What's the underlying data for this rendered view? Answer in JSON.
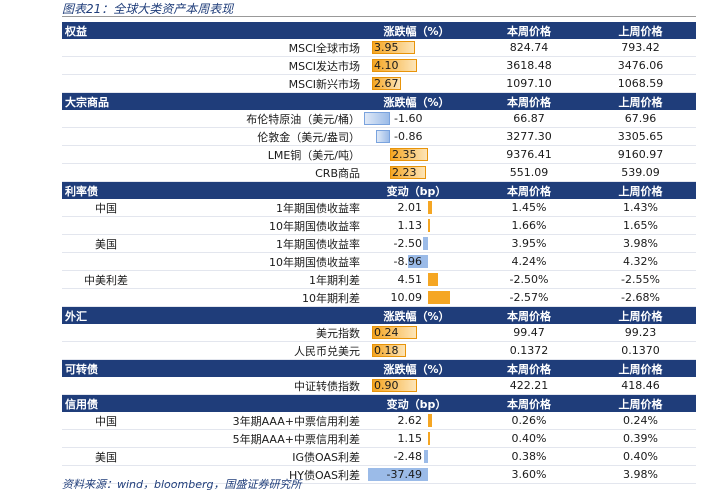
{
  "title": "图表21：全球大类资产本周表现",
  "source": "资料来源：wind，bloomberg，国盛证券研究所",
  "sections": [
    {
      "name": "权益",
      "value_header": "涨跌幅（%）",
      "cur_header": "本周价格",
      "prev_header": "上周价格",
      "kind": "pct",
      "rows": [
        {
          "sub": "",
          "label": "MSCI全球市场",
          "value": 3.95,
          "value_text": "3.95",
          "cur": "824.74",
          "prev": "793.42"
        },
        {
          "sub": "",
          "label": "MSCI发达市场",
          "value": 4.1,
          "value_text": "4.10",
          "cur": "3618.48",
          "prev": "3476.06"
        },
        {
          "sub": "",
          "label": "MSCI新兴市场",
          "value": 2.67,
          "value_text": "2.67",
          "cur": "1097.10",
          "prev": "1068.59"
        }
      ]
    },
    {
      "name": "大宗商品",
      "value_header": "涨跌幅（%）",
      "cur_header": "本周价格",
      "prev_header": "上周价格",
      "kind": "pct",
      "rows": [
        {
          "sub": "",
          "label": "布伦特原油（美元/桶）",
          "value": -1.6,
          "value_text": "-1.60",
          "cur": "66.87",
          "prev": "67.96"
        },
        {
          "sub": "",
          "label": "伦敦金（美元/盎司）",
          "value": -0.86,
          "value_text": "-0.86",
          "cur": "3277.30",
          "prev": "3305.65"
        },
        {
          "sub": "",
          "label": "LME铜（美元/吨）",
          "value": 2.35,
          "value_text": "2.35",
          "cur": "9376.41",
          "prev": "9160.97"
        },
        {
          "sub": "",
          "label": "CRB商品",
          "value": 2.23,
          "value_text": "2.23",
          "cur": "551.09",
          "prev": "539.09"
        }
      ]
    },
    {
      "name": "利率债",
      "value_header": "变动（bp）",
      "cur_header": "本周价格",
      "prev_header": "上周价格",
      "kind": "bp",
      "rows": [
        {
          "sub": "中国",
          "label": "1年期国债收益率",
          "value": 2.01,
          "value_text": "2.01",
          "cur": "1.45%",
          "prev": "1.43%"
        },
        {
          "sub": "",
          "label": "10年期国债收益率",
          "value": 1.13,
          "value_text": "1.13",
          "cur": "1.66%",
          "prev": "1.65%"
        },
        {
          "sub": "美国",
          "label": "1年期国债收益率",
          "value": -2.5,
          "value_text": "-2.50",
          "cur": "3.95%",
          "prev": "3.98%"
        },
        {
          "sub": "",
          "label": "10年期国债收益率",
          "value": -8.96,
          "value_text": "-8.96",
          "cur": "4.24%",
          "prev": "4.32%"
        },
        {
          "sub": "中美利差",
          "label": "1年期利差",
          "value": 4.51,
          "value_text": "4.51",
          "cur": "-2.50%",
          "prev": "-2.55%"
        },
        {
          "sub": "",
          "label": "10年期利差",
          "value": 10.09,
          "value_text": "10.09",
          "cur": "-2.57%",
          "prev": "-2.68%"
        }
      ]
    },
    {
      "name": "外汇",
      "value_header": "涨跌幅（%）",
      "cur_header": "本周价格",
      "prev_header": "上周价格",
      "kind": "pct",
      "rows": [
        {
          "sub": "",
          "label": "美元指数",
          "value": 0.24,
          "value_text": "0.24",
          "cur": "99.47",
          "prev": "99.23"
        },
        {
          "sub": "",
          "label": "人民币兑美元",
          "value": 0.18,
          "value_text": "0.18",
          "cur": "0.1372",
          "prev": "0.1370"
        }
      ]
    },
    {
      "name": "可转债",
      "value_header": "涨跌幅（%）",
      "cur_header": "本周价格",
      "prev_header": "上周价格",
      "kind": "pct",
      "rows": [
        {
          "sub": "",
          "label": "中证转债指数",
          "value": 0.9,
          "value_text": "0.90",
          "cur": "422.21",
          "prev": "418.46"
        }
      ]
    },
    {
      "name": "信用债",
      "value_header": "变动（bp）",
      "cur_header": "本周价格",
      "prev_header": "上周价格",
      "kind": "bp",
      "rows": [
        {
          "sub": "中国",
          "label": "3年期AAA+中票信用利差",
          "value": 2.62,
          "value_text": "2.62",
          "cur": "0.26%",
          "prev": "0.24%"
        },
        {
          "sub": "",
          "label": "5年期AAA+中票信用利差",
          "value": 1.15,
          "value_text": "1.15",
          "cur": "0.40%",
          "prev": "0.39%"
        },
        {
          "sub": "美国",
          "label": "IG债OAS利差",
          "value": -2.48,
          "value_text": "-2.48",
          "cur": "0.38%",
          "prev": "0.40%"
        },
        {
          "sub": "",
          "label": "HY债OAS利差",
          "value": -37.49,
          "value_text": "-37.49",
          "cur": "3.60%",
          "prev": "3.98%"
        }
      ]
    }
  ]
}
